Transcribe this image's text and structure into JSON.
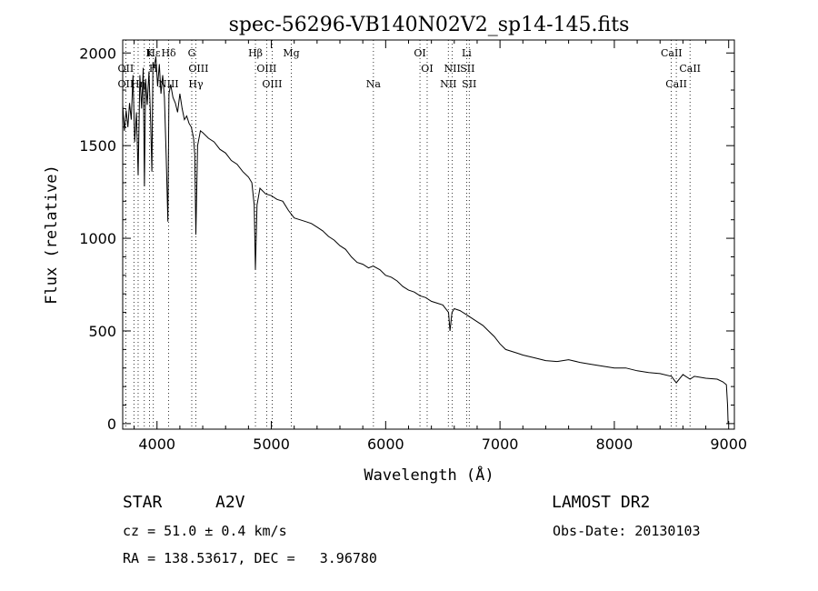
{
  "chart_data": {
    "type": "line",
    "title": "spec-56296-VB140N02V2_sp14-145.fits",
    "xlabel": "Wavelength (Å)",
    "ylabel": "Flux (relative)",
    "xlim": [
      3700,
      9050
    ],
    "ylim": [
      -30,
      2070
    ],
    "x_ticks": [
      4000,
      5000,
      6000,
      7000,
      8000,
      9000
    ],
    "y_ticks": [
      0,
      500,
      1000,
      1500,
      2000
    ],
    "grid": false,
    "series": [
      {
        "points": [
          [
            3700,
            1720
          ],
          [
            3715,
            1580
          ],
          [
            3730,
            1690
          ],
          [
            3745,
            1600
          ],
          [
            3760,
            1730
          ],
          [
            3775,
            1640
          ],
          [
            3790,
            1880
          ],
          [
            3805,
            1520
          ],
          [
            3820,
            1680
          ],
          [
            3835,
            1340
          ],
          [
            3850,
            1880
          ],
          [
            3865,
            1700
          ],
          [
            3880,
            1920
          ],
          [
            3890,
            1280
          ],
          [
            3900,
            1860
          ],
          [
            3915,
            1720
          ],
          [
            3930,
            1900
          ],
          [
            3945,
            1620
          ],
          [
            3955,
            1360
          ],
          [
            3965,
            1950
          ],
          [
            3975,
            1920
          ],
          [
            3990,
            1980
          ],
          [
            4005,
            1820
          ],
          [
            4020,
            1940
          ],
          [
            4035,
            1780
          ],
          [
            4050,
            1880
          ],
          [
            4065,
            1760
          ],
          [
            4080,
            1450
          ],
          [
            4095,
            1090
          ],
          [
            4105,
            1780
          ],
          [
            4120,
            1830
          ],
          [
            4140,
            1760
          ],
          [
            4160,
            1730
          ],
          [
            4180,
            1680
          ],
          [
            4200,
            1780
          ],
          [
            4220,
            1700
          ],
          [
            4240,
            1640
          ],
          [
            4260,
            1660
          ],
          [
            4280,
            1620
          ],
          [
            4300,
            1600
          ],
          [
            4320,
            1540
          ],
          [
            4330,
            1450
          ],
          [
            4340,
            1020
          ],
          [
            4355,
            1500
          ],
          [
            4380,
            1580
          ],
          [
            4400,
            1570
          ],
          [
            4450,
            1540
          ],
          [
            4500,
            1520
          ],
          [
            4550,
            1480
          ],
          [
            4600,
            1460
          ],
          [
            4650,
            1420
          ],
          [
            4700,
            1400
          ],
          [
            4750,
            1360
          ],
          [
            4800,
            1330
          ],
          [
            4830,
            1300
          ],
          [
            4850,
            1180
          ],
          [
            4861,
            830
          ],
          [
            4875,
            1180
          ],
          [
            4900,
            1270
          ],
          [
            4950,
            1240
          ],
          [
            5000,
            1230
          ],
          [
            5050,
            1210
          ],
          [
            5100,
            1200
          ],
          [
            5150,
            1150
          ],
          [
            5200,
            1110
          ],
          [
            5250,
            1100
          ],
          [
            5300,
            1090
          ],
          [
            5350,
            1080
          ],
          [
            5400,
            1060
          ],
          [
            5450,
            1040
          ],
          [
            5500,
            1010
          ],
          [
            5550,
            990
          ],
          [
            5600,
            960
          ],
          [
            5650,
            940
          ],
          [
            5700,
            900
          ],
          [
            5750,
            870
          ],
          [
            5800,
            860
          ],
          [
            5850,
            840
          ],
          [
            5890,
            850
          ],
          [
            5950,
            830
          ],
          [
            6000,
            800
          ],
          [
            6050,
            790
          ],
          [
            6100,
            770
          ],
          [
            6150,
            740
          ],
          [
            6200,
            720
          ],
          [
            6250,
            710
          ],
          [
            6300,
            690
          ],
          [
            6350,
            680
          ],
          [
            6400,
            660
          ],
          [
            6450,
            650
          ],
          [
            6500,
            640
          ],
          [
            6550,
            600
          ],
          [
            6563,
            500
          ],
          [
            6580,
            600
          ],
          [
            6600,
            620
          ],
          [
            6650,
            610
          ],
          [
            6700,
            590
          ],
          [
            6750,
            570
          ],
          [
            6800,
            550
          ],
          [
            6850,
            530
          ],
          [
            6900,
            500
          ],
          [
            6950,
            470
          ],
          [
            7000,
            430
          ],
          [
            7050,
            400
          ],
          [
            7100,
            390
          ],
          [
            7150,
            380
          ],
          [
            7200,
            370
          ],
          [
            7300,
            355
          ],
          [
            7400,
            340
          ],
          [
            7500,
            335
          ],
          [
            7600,
            345
          ],
          [
            7700,
            330
          ],
          [
            7800,
            320
          ],
          [
            7900,
            310
          ],
          [
            8000,
            300
          ],
          [
            8100,
            300
          ],
          [
            8200,
            285
          ],
          [
            8300,
            275
          ],
          [
            8400,
            270
          ],
          [
            8500,
            255
          ],
          [
            8542,
            220
          ],
          [
            8600,
            265
          ],
          [
            8662,
            240
          ],
          [
            8700,
            255
          ],
          [
            8800,
            245
          ],
          [
            8900,
            240
          ],
          [
            8950,
            225
          ],
          [
            8980,
            210
          ],
          [
            8990,
            100
          ],
          [
            8995,
            0
          ]
        ]
      }
    ],
    "line_markers": {
      "row1": [
        {
          "label": "Hε",
          "x": 3970
        },
        {
          "label": "K",
          "x": 3934
        },
        {
          "label": "Hδ",
          "x": 4102
        },
        {
          "label": "G",
          "x": 4304
        },
        {
          "label": "Hβ",
          "x": 4861
        },
        {
          "label": "Mg",
          "x": 5175
        },
        {
          "label": "OI",
          "x": 6300
        },
        {
          "label": "Li",
          "x": 6708
        },
        {
          "label": "CaII",
          "x": 8500
        }
      ],
      "row2": [
        {
          "label": "OII",
          "x": 3727
        },
        {
          "label": "H",
          "x": 3968
        },
        {
          "label": "OIII",
          "x": 4363
        },
        {
          "label": "OIII",
          "x": 4959
        },
        {
          "label": "OI",
          "x": 6363
        },
        {
          "label": "NII",
          "x": 6583
        },
        {
          "label": "SII",
          "x": 6716
        },
        {
          "label": "CaII",
          "x": 8662
        }
      ],
      "row3": [
        {
          "label": "OII",
          "x": 3727
        },
        {
          "label": "Hη",
          "x": 3835
        },
        {
          "label": "NIII",
          "x": 4100
        },
        {
          "label": "Hγ",
          "x": 4340
        },
        {
          "label": "OIII",
          "x": 5007
        },
        {
          "label": "Na",
          "x": 5893
        },
        {
          "label": "NII",
          "x": 6548
        },
        {
          "label": "SII",
          "x": 6731
        },
        {
          "label": "CaII",
          "x": 8542
        }
      ],
      "vlines": [
        3727,
        3798,
        3835,
        3889,
        3934,
        3968,
        4102,
        4304,
        4340,
        4861,
        4959,
        5007,
        5175,
        5893,
        6300,
        6363,
        6548,
        6583,
        6708,
        6731,
        8498,
        8542,
        8662
      ]
    }
  },
  "info": {
    "object_class": "STAR",
    "subclass": "A2V",
    "survey": "LAMOST DR2",
    "redshift": "cz = 51.0 ± 0.4 km/s",
    "obs_date": "Obs-Date: 20130103",
    "coords": "RA = 138.53617, DEC =   3.96780"
  }
}
